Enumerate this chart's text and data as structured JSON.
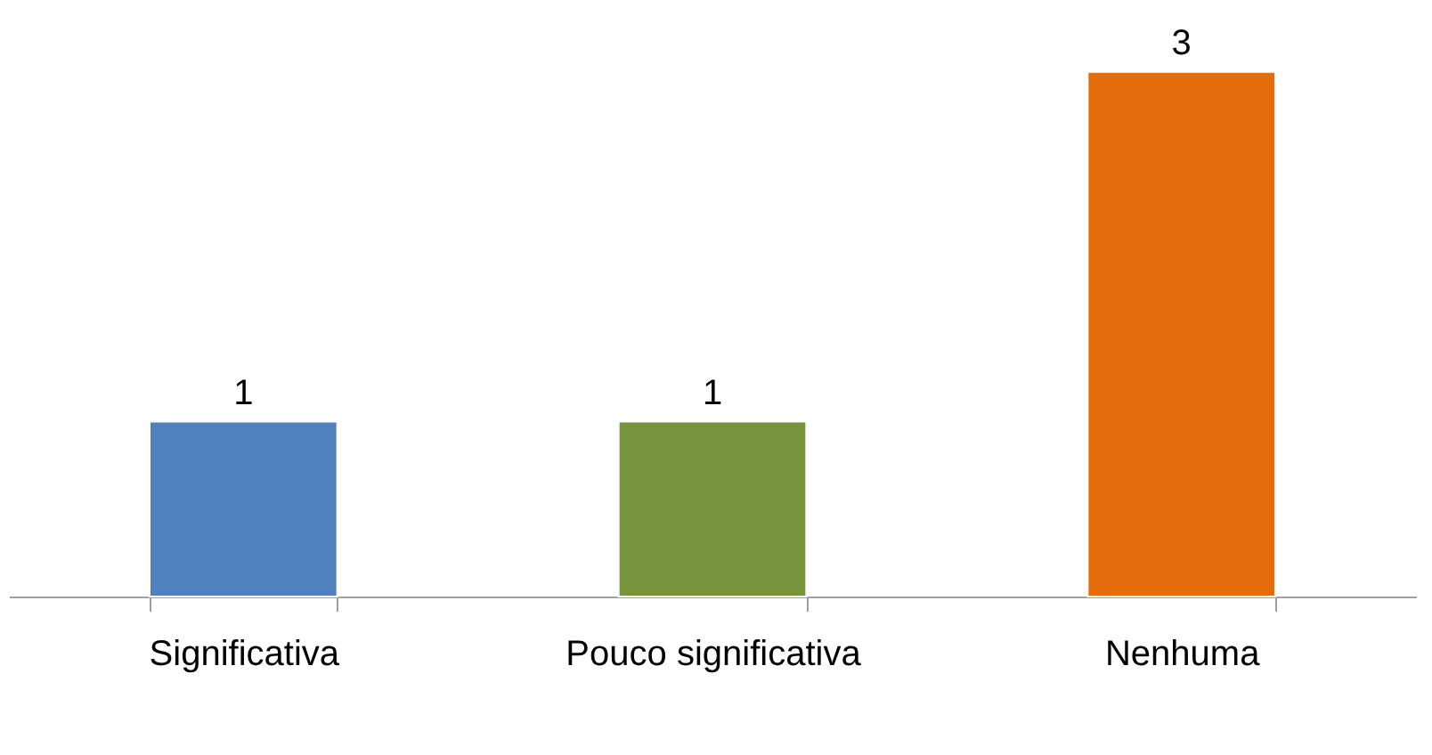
{
  "chart_data": {
    "type": "bar",
    "categories": [
      "Significativa",
      "Pouco significativa",
      "Nenhuma"
    ],
    "values": [
      1,
      1,
      3
    ],
    "colors": [
      "#4f81bd",
      "#77933c",
      "#e46c0a"
    ],
    "data_labels": true,
    "grid": false,
    "legend": false
  }
}
